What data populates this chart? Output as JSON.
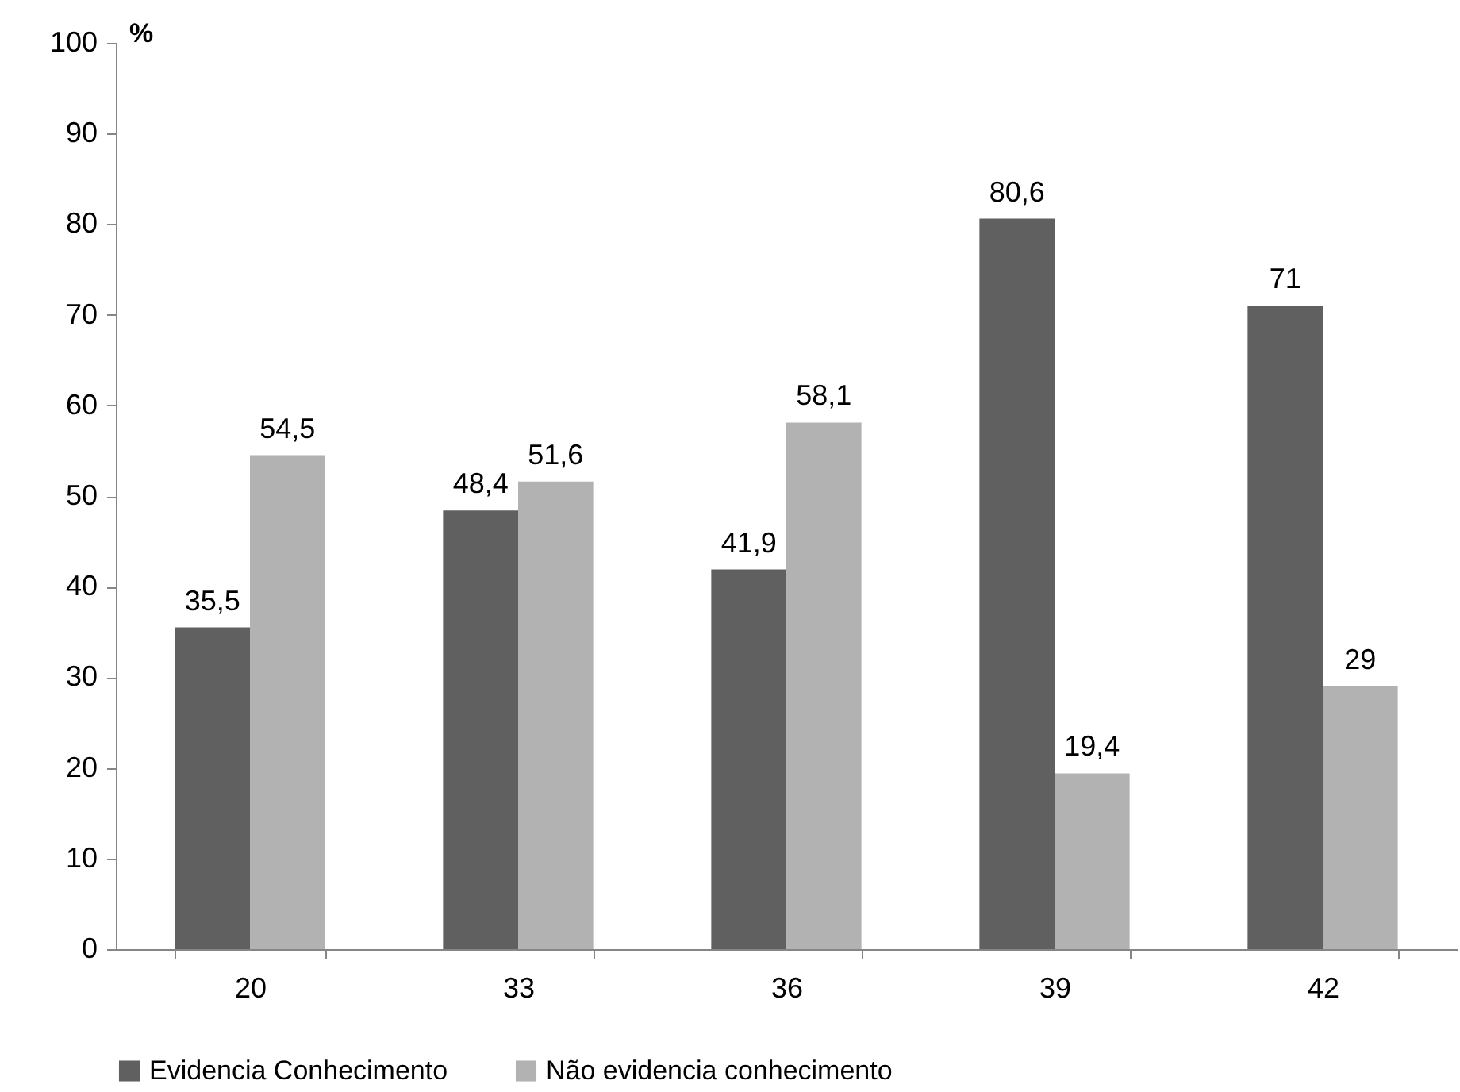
{
  "chart_data": {
    "type": "bar",
    "ylabel": "%",
    "categories": [
      "20",
      "33",
      "36",
      "39",
      "42"
    ],
    "ylim": [
      0,
      100
    ],
    "yticks": [
      0,
      10,
      20,
      30,
      40,
      50,
      60,
      70,
      80,
      90,
      100
    ],
    "legend": "bottom",
    "series": [
      {
        "name": "Evidencia Conhecimento",
        "color": "#606060",
        "values": [
          35.5,
          48.4,
          41.9,
          80.6,
          71
        ],
        "value_labels": [
          "35,5",
          "48,4",
          "41,9",
          "80,6",
          "71"
        ]
      },
      {
        "name": "Não evidencia conhecimento",
        "color": "#b2b2b2",
        "values": [
          54.5,
          51.6,
          58.1,
          19.4,
          29
        ],
        "value_labels": [
          "54,5",
          "51,6",
          "58,1",
          "19,4",
          "29"
        ]
      }
    ]
  }
}
